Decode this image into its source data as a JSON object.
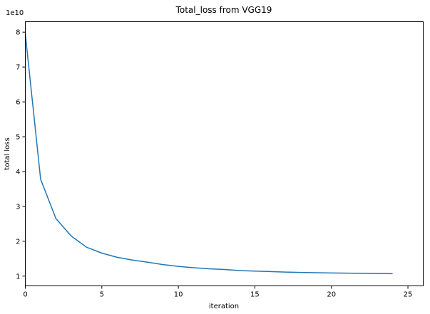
{
  "chart_data": {
    "type": "line",
    "title": "Total_loss from VGG19",
    "xlabel": "iteration",
    "ylabel": "total loss",
    "y_offset_label": "1e10",
    "xlim": [
      0,
      26
    ],
    "ylim": [
      0.72,
      8.3
    ],
    "x_ticks": [
      0,
      5,
      10,
      15,
      20,
      25
    ],
    "y_ticks": [
      1,
      2,
      3,
      4,
      5,
      6,
      7,
      8
    ],
    "grid": false,
    "legend": "none",
    "series_color": "#1f77b4",
    "series": [
      {
        "x": [
          0,
          1,
          2,
          3,
          4,
          5,
          6,
          7,
          8,
          9,
          10,
          11,
          12,
          13,
          14,
          15,
          16,
          17,
          18,
          19,
          20,
          21,
          22,
          23,
          24
        ],
        "values": [
          7.95,
          3.78,
          2.65,
          2.15,
          1.83,
          1.66,
          1.54,
          1.46,
          1.4,
          1.33,
          1.28,
          1.24,
          1.21,
          1.19,
          1.16,
          1.145,
          1.13,
          1.115,
          1.105,
          1.098,
          1.09,
          1.085,
          1.08,
          1.075,
          1.07
        ]
      }
    ]
  }
}
